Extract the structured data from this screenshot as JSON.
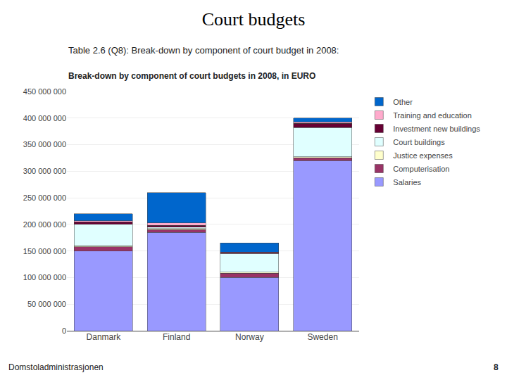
{
  "chart_data": {
    "type": "bar",
    "stacked": true,
    "title": "Court budgets",
    "subtitle": "Table 2.6 (Q8): Break-down by component of court budget in 2008:",
    "annotations": [
      "Break-down by component of court budgets in 2008, in EURO",
      "Domstoladministrasjonen",
      "8"
    ],
    "categories": [
      "Danmark",
      "Finland",
      "Norway",
      "Sweden"
    ],
    "series": [
      {
        "name": "Salaries",
        "color": "#9999ff",
        "values": [
          150000000,
          185000000,
          100000000,
          320000000
        ]
      },
      {
        "name": "Computerisation",
        "color": "#993366",
        "values": [
          8000000,
          5000000,
          8000000,
          5000000
        ]
      },
      {
        "name": "Justice expenses",
        "color": "#ffffcc",
        "values": [
          2000000,
          2000000,
          2000000,
          2000000
        ]
      },
      {
        "name": "Court buildings",
        "color": "#e0ffff",
        "values": [
          40000000,
          3000000,
          35000000,
          55000000
        ]
      },
      {
        "name": "Investment new buildings",
        "color": "#660033",
        "values": [
          5000000,
          3000000,
          2000000,
          8000000
        ]
      },
      {
        "name": "Training and education",
        "color": "#ffaacc",
        "values": [
          2000000,
          5000000,
          1000000,
          3000000
        ]
      },
      {
        "name": "Other",
        "color": "#0066cc",
        "values": [
          13000000,
          57000000,
          17000000,
          7000000
        ]
      }
    ],
    "ylim": [
      0,
      450000000
    ],
    "yticks": [
      0,
      {
        "value": 50000000,
        "label": "50 000 000"
      },
      {
        "value": 100000000,
        "label": "100 000 000"
      },
      {
        "value": 150000000,
        "label": "150 000 000"
      },
      {
        "value": 200000000,
        "label": "200 000 000"
      },
      {
        "value": 250000000,
        "label": "250 000 000"
      },
      {
        "value": 300000000,
        "label": "300 000 000"
      },
      {
        "value": 350000000,
        "label": "350 000 000"
      },
      {
        "value": 400000000,
        "label": "400 000 000"
      },
      {
        "value": 450000000,
        "label": "450 000 000"
      }
    ],
    "grid": true,
    "legend": "right"
  }
}
